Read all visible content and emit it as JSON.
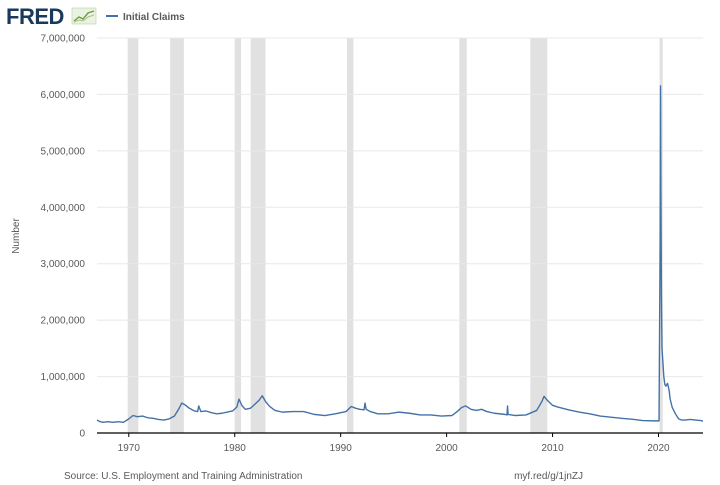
{
  "brand": {
    "name": "FRED",
    "logo_icon": "fred-graph-icon"
  },
  "colors": {
    "line": "#4472a8",
    "recession": "#e1e1e1",
    "grid": "#e8e8e8",
    "axis": "#000000",
    "text": "#595959"
  },
  "footer": {
    "source": "Source: U.S. Employment and Training Administration",
    "link": "myf.red/g/1jnZJ"
  },
  "chart_data": {
    "type": "line",
    "title": "",
    "xlabel": "",
    "ylabel": "Number",
    "legend": {
      "position": "top-left",
      "entries": [
        "Initial Claims"
      ]
    },
    "grid": true,
    "xlim": [
      1967.0,
      2024.2
    ],
    "ylim": [
      0,
      7000000
    ],
    "x_ticks": [
      1970,
      1980,
      1990,
      2000,
      2010,
      2020
    ],
    "x_tick_labels": [
      "1970",
      "1980",
      "1990",
      "2000",
      "2010",
      "2020"
    ],
    "y_ticks": [
      0,
      1000000,
      2000000,
      3000000,
      4000000,
      5000000,
      6000000,
      7000000
    ],
    "y_tick_labels": [
      "0",
      "1,000,000",
      "2,000,000",
      "3,000,000",
      "4,000,000",
      "5,000,000",
      "6,000,000",
      "7,000,000"
    ],
    "recessions": [
      [
        1969.9,
        1970.9
      ],
      [
        1973.9,
        1975.2
      ],
      [
        1980.0,
        1980.6
      ],
      [
        1981.5,
        1982.9
      ],
      [
        1990.6,
        1991.2
      ],
      [
        2001.2,
        2001.9
      ],
      [
        2007.9,
        2009.5
      ],
      [
        2020.1,
        2020.4
      ]
    ],
    "series": [
      {
        "name": "Initial Claims",
        "x": [
          1967.0,
          1967.3,
          1967.6,
          1968.0,
          1968.5,
          1969.0,
          1969.5,
          1970.0,
          1970.4,
          1970.8,
          1971.3,
          1971.8,
          1972.3,
          1972.8,
          1973.3,
          1973.8,
          1974.3,
          1974.7,
          1975.0,
          1975.3,
          1975.7,
          1976.2,
          1976.5,
          1976.6,
          1976.8,
          1977.3,
          1977.8,
          1978.3,
          1978.8,
          1979.3,
          1979.8,
          1980.2,
          1980.4,
          1980.7,
          1981.0,
          1981.5,
          1981.9,
          1982.3,
          1982.6,
          1982.9,
          1983.3,
          1983.8,
          1984.5,
          1985.5,
          1986.5,
          1987.5,
          1988.5,
          1989.5,
          1990.5,
          1991.0,
          1991.4,
          1991.8,
          1992.2,
          1992.3,
          1992.4,
          1992.8,
          1993.5,
          1994.5,
          1995.5,
          1996.5,
          1997.5,
          1998.5,
          1999.5,
          2000.5,
          2001.0,
          2001.4,
          2001.8,
          2002.3,
          2002.8,
          2003.3,
          2003.8,
          2004.5,
          2005.5,
          2005.7,
          2005.75,
          2005.8,
          2006.5,
          2007.5,
          2008.0,
          2008.5,
          2009.0,
          2009.2,
          2009.5,
          2010.0,
          2010.5,
          2011.5,
          2012.5,
          2013.5,
          2014.5,
          2015.5,
          2016.5,
          2017.5,
          2018.5,
          2019.5,
          2020.05,
          2020.15,
          2020.19,
          2020.22,
          2020.25,
          2020.28,
          2020.33,
          2020.4,
          2020.5,
          2020.6,
          2020.7,
          2020.85,
          2021.0,
          2021.1,
          2021.3,
          2021.6,
          2021.9,
          2022.2,
          2022.5,
          2023.0,
          2023.5,
          2024.0,
          2024.2
        ],
        "values": [
          230000,
          200000,
          190000,
          200000,
          190000,
          200000,
          190000,
          250000,
          310000,
          290000,
          300000,
          270000,
          260000,
          240000,
          230000,
          250000,
          300000,
          420000,
          530000,
          500000,
          440000,
          390000,
          380000,
          480000,
          380000,
          390000,
          360000,
          340000,
          350000,
          370000,
          390000,
          460000,
          600000,
          480000,
          420000,
          440000,
          510000,
          580000,
          660000,
          560000,
          470000,
          400000,
          370000,
          380000,
          380000,
          330000,
          310000,
          340000,
          380000,
          470000,
          440000,
          420000,
          410000,
          530000,
          420000,
          380000,
          340000,
          340000,
          370000,
          350000,
          320000,
          320000,
          300000,
          310000,
          380000,
          450000,
          480000,
          420000,
          400000,
          420000,
          380000,
          350000,
          330000,
          320000,
          480000,
          330000,
          310000,
          320000,
          360000,
          400000,
          560000,
          650000,
          580000,
          490000,
          460000,
          410000,
          370000,
          340000,
          300000,
          280000,
          260000,
          245000,
          220000,
          215000,
          215000,
          3300000,
          6150000,
          4500000,
          3400000,
          2400000,
          1500000,
          1300000,
          1000000,
          860000,
          830000,
          880000,
          760000,
          600000,
          450000,
          340000,
          250000,
          230000,
          230000,
          240000,
          230000,
          220000,
          210000
        ]
      }
    ]
  }
}
